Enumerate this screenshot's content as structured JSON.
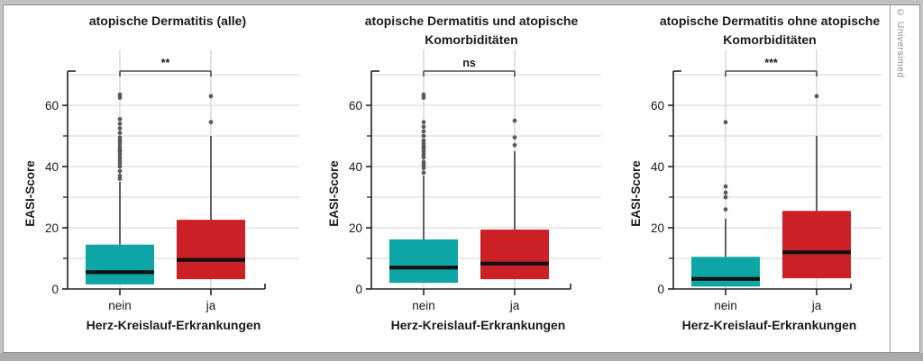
{
  "page": {
    "copyright": "© Universimed"
  },
  "colors": {
    "teal": "#0da5a5",
    "red": "#cb2026",
    "median": "#111111",
    "outlier": "#4f4f4f",
    "whisker": "#2e2e2e",
    "bracket": "#4a4a4a",
    "axis": "#222222",
    "grid_h": "#dcdcdc",
    "grid_v": "#cfcfcf",
    "text": "#1a1a1a"
  },
  "chart_data": [
    {
      "type": "box",
      "title": "atopische Dermatitis (alle)",
      "significance": "**",
      "xlabel": "Herz-Kreislauf-Erkrankungen",
      "ylabel": "EASI-Score",
      "categories": [
        "nein",
        "ja"
      ],
      "ylim": [
        0,
        71
      ],
      "yticks_major": [
        0,
        20,
        40,
        60
      ],
      "yticks_minor": [
        10,
        30,
        50
      ],
      "gridlines": [
        10,
        20,
        30,
        40,
        50,
        60,
        70
      ],
      "series": [
        {
          "category": "nein",
          "fill": "teal",
          "q1": 1.5,
          "median": 5.5,
          "q3": 14.5,
          "whisker_low": 1.5,
          "whisker_high": 35,
          "outliers": [
            36,
            37,
            38.5,
            40,
            41,
            42,
            43,
            44,
            45,
            45.5,
            46.5,
            47.5,
            48.5,
            49.5,
            51,
            52.5,
            54,
            55.5,
            62.5,
            63.5
          ]
        },
        {
          "category": "ja",
          "fill": "red",
          "q1": 3.2,
          "median": 9.5,
          "q3": 22.6,
          "whisker_low": 3.2,
          "whisker_high": 50,
          "outliers": [
            54.5,
            63
          ]
        }
      ]
    },
    {
      "type": "box",
      "title": "atopische Dermatitis und atopische Komorbiditäten",
      "significance": "ns",
      "xlabel": "Herz-Kreislauf-Erkrankungen",
      "ylabel": "EASI-Score",
      "categories": [
        "nein",
        "ja"
      ],
      "ylim": [
        0,
        71
      ],
      "yticks_major": [
        0,
        20,
        40,
        60
      ],
      "yticks_minor": [
        10,
        30,
        50
      ],
      "gridlines": [
        10,
        20,
        30,
        40,
        50,
        60,
        70
      ],
      "series": [
        {
          "category": "nein",
          "fill": "teal",
          "q1": 2,
          "median": 7,
          "q3": 16.2,
          "whisker_low": 2,
          "whisker_high": 37,
          "outliers": [
            38,
            39.5,
            40.5,
            41.5,
            43,
            44,
            45,
            46,
            46.5,
            47.5,
            48.5,
            50,
            51.5,
            53,
            54.5,
            62.5,
            63.5
          ]
        },
        {
          "category": "ja",
          "fill": "red",
          "q1": 3.2,
          "median": 8.3,
          "q3": 19.4,
          "whisker_low": 3.2,
          "whisker_high": 45,
          "outliers": [
            47,
            49.5,
            55
          ]
        }
      ]
    },
    {
      "type": "box",
      "title": "atopische Dermatitis ohne atopische Komorbiditäten",
      "significance": "***",
      "xlabel": "Herz-Kreislauf-Erkrankungen",
      "ylabel": "EASI-Score",
      "categories": [
        "nein",
        "ja"
      ],
      "ylim": [
        0,
        71
      ],
      "yticks_major": [
        0,
        20,
        40,
        60
      ],
      "yticks_minor": [
        10,
        30,
        50
      ],
      "gridlines": [
        10,
        20,
        30,
        40,
        50,
        60,
        70
      ],
      "series": [
        {
          "category": "nein",
          "fill": "teal",
          "q1": 0.8,
          "median": 3.3,
          "q3": 10.5,
          "whisker_low": 0.8,
          "whisker_high": 23,
          "outliers": [
            26,
            30,
            31.5,
            33.5,
            54.5
          ]
        },
        {
          "category": "ja",
          "fill": "red",
          "q1": 3.5,
          "median": 12,
          "q3": 25.5,
          "whisker_low": 3.5,
          "whisker_high": 50,
          "outliers": [
            63
          ]
        }
      ]
    }
  ]
}
